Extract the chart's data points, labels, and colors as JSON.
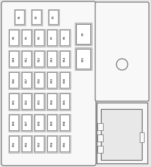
{
  "bg_color": "#e8e8e8",
  "panel_fill": "#f8f8f8",
  "panel_edge": "#666666",
  "fuse_fill": "#ffffff",
  "fuse_outer_fill": "#cccccc",
  "fuse_edge": "#555555",
  "text_color": "#333333",
  "font_size": 2.8,
  "row1_labels": [
    "F1",
    "F2",
    "F3"
  ],
  "row2_labels": [
    "F4",
    "F5",
    "F6",
    "F7",
    "F8"
  ],
  "row3_labels": [
    "F10",
    "F11",
    "F12",
    "F13",
    "F14"
  ],
  "row4_labels": [
    "F16",
    "F17",
    "F18",
    "F19",
    "F20"
  ],
  "row5_labels": [
    "F21",
    "F22",
    "F23",
    "F24",
    "F25"
  ],
  "row6_labels": [
    "F26",
    "F27",
    "F28",
    "F29",
    "F30"
  ],
  "row7_labels": [
    "F31",
    "F32",
    "F33",
    "F34",
    "F35"
  ],
  "large1_label": "F9",
  "large2_label": "F15"
}
